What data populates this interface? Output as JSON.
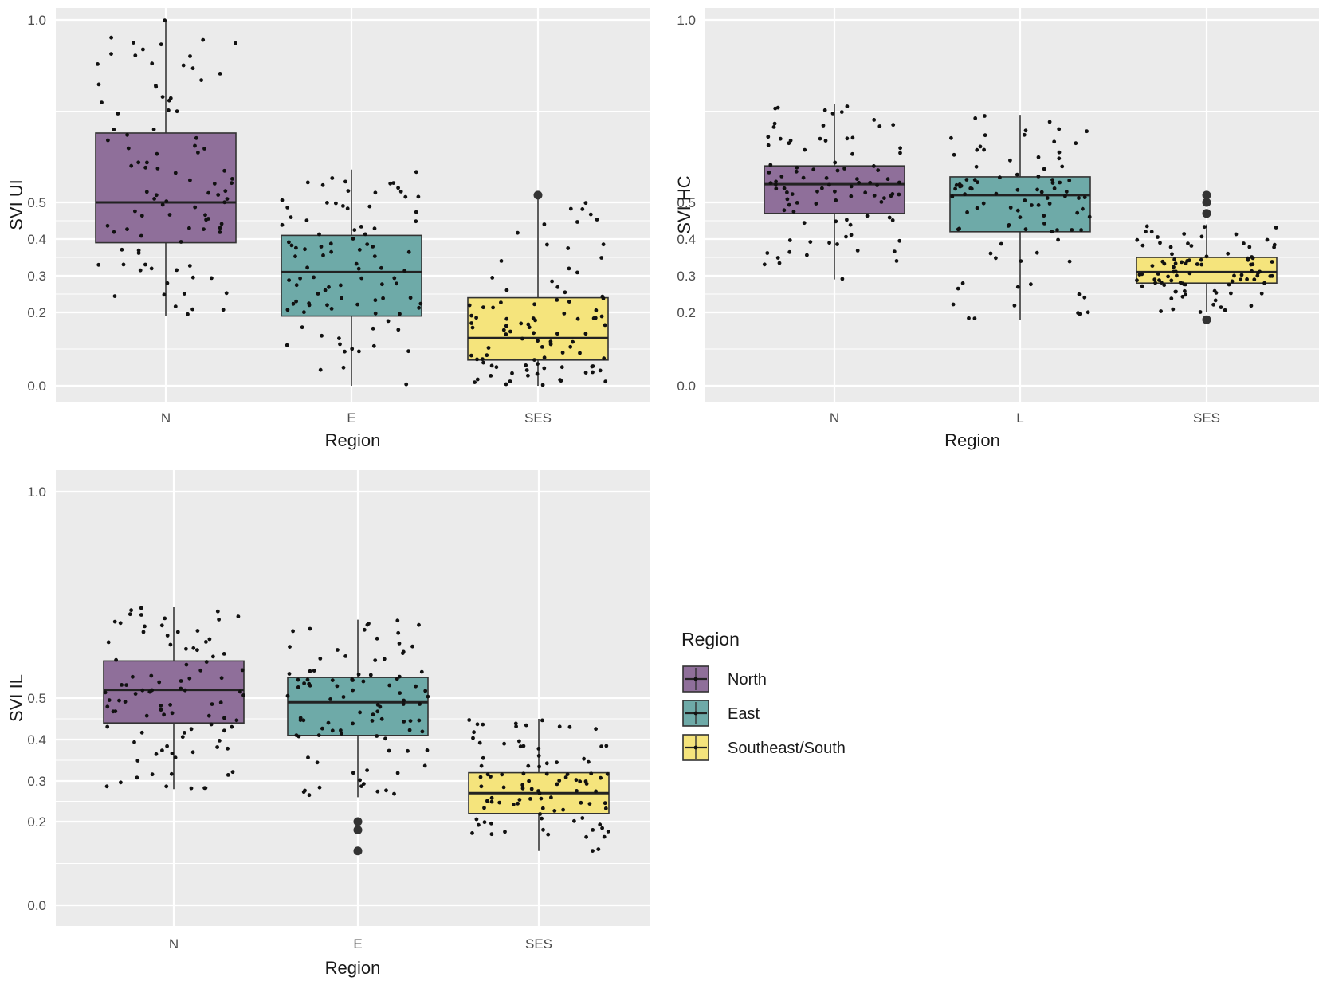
{
  "colors": {
    "North": "#8f6f9a",
    "East": "#6eaaa8",
    "Southeast/South": "#f5e47c"
  },
  "legend": {
    "title": "Region",
    "items": [
      {
        "label": "North",
        "key": "North"
      },
      {
        "label": "East",
        "key": "East"
      },
      {
        "label": "Southeast/South",
        "key": "Southeast/South"
      }
    ]
  },
  "chart_data": [
    {
      "type": "boxplot",
      "xlabel": "Region",
      "ylabel": "SVI UI",
      "ylim": [
        0.0,
        1.0
      ],
      "yticks": [
        "0.0",
        "0.2",
        "0.3",
        "0.4",
        "0.5",
        "1.0"
      ],
      "categories": [
        "N",
        "E",
        "SES"
      ],
      "boxes": [
        {
          "category": "N",
          "group": "North",
          "whisker_low": 0.19,
          "q1": 0.39,
          "median": 0.5,
          "q3": 0.69,
          "whisker_high": 1.0,
          "outliers": []
        },
        {
          "category": "E",
          "group": "East",
          "whisker_low": 0.0,
          "q1": 0.19,
          "median": 0.31,
          "q3": 0.41,
          "whisker_high": 0.59,
          "outliers": []
        },
        {
          "category": "SES",
          "group": "Southeast/South",
          "whisker_low": 0.0,
          "q1": 0.07,
          "median": 0.13,
          "q3": 0.24,
          "whisker_high": 0.51,
          "outliers": [
            0.52
          ]
        }
      ]
    },
    {
      "type": "boxplot",
      "xlabel": "Region",
      "ylabel": "SVI HC",
      "ylim": [
        0.0,
        1.0
      ],
      "yticks": [
        "0.0",
        "0.2",
        "0.3",
        "0.4",
        "0.5",
        "1.0"
      ],
      "categories": [
        "N",
        "L",
        "SES"
      ],
      "boxes": [
        {
          "category": "N",
          "group": "North",
          "whisker_low": 0.29,
          "q1": 0.47,
          "median": 0.55,
          "q3": 0.6,
          "whisker_high": 0.77,
          "outliers": []
        },
        {
          "category": "L",
          "group": "East",
          "whisker_low": 0.18,
          "q1": 0.42,
          "median": 0.52,
          "q3": 0.57,
          "whisker_high": 0.74,
          "outliers": []
        },
        {
          "category": "SES",
          "group": "Southeast/South",
          "whisker_low": 0.2,
          "q1": 0.28,
          "median": 0.31,
          "q3": 0.35,
          "whisker_high": 0.44,
          "outliers": [
            0.18,
            0.47,
            0.5,
            0.52
          ]
        }
      ]
    },
    {
      "type": "boxplot",
      "xlabel": "Region",
      "ylabel": "SVI IL",
      "ylim": [
        0.0,
        1.0
      ],
      "yticks": [
        "0.0",
        "0.2",
        "0.3",
        "0.4",
        "0.5",
        "1.0"
      ],
      "categories": [
        "N",
        "E",
        "SES"
      ],
      "boxes": [
        {
          "category": "N",
          "group": "North",
          "whisker_low": 0.28,
          "q1": 0.44,
          "median": 0.52,
          "q3": 0.59,
          "whisker_high": 0.72,
          "outliers": []
        },
        {
          "category": "E",
          "group": "East",
          "whisker_low": 0.26,
          "q1": 0.41,
          "median": 0.49,
          "q3": 0.55,
          "whisker_high": 0.69,
          "outliers": [
            0.13,
            0.18,
            0.2
          ]
        },
        {
          "category": "SES",
          "group": "Southeast/South",
          "whisker_low": 0.13,
          "q1": 0.22,
          "median": 0.27,
          "q3": 0.32,
          "whisker_high": 0.45,
          "outliers": []
        }
      ]
    }
  ]
}
